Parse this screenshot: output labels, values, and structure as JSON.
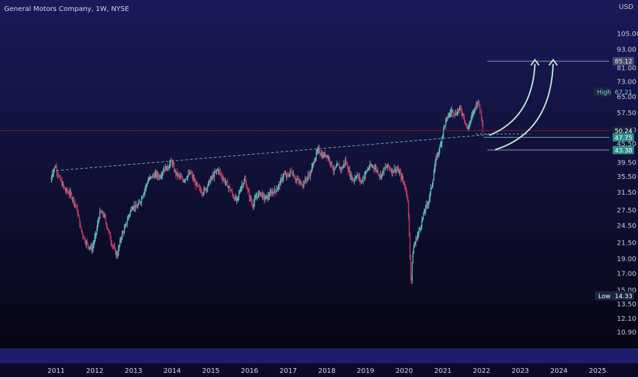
{
  "header": {
    "title": "General Motors Company, 1W, NYSE",
    "currency": "USD"
  },
  "colors": {
    "bg_top": "#1a1a5a",
    "bg_bottom": "#05050f",
    "up": "#5fb8b8",
    "down": "#c23a5e",
    "current_line": "#8b1a1a",
    "trend_line": "#6fb3b3",
    "arrow": "#bfe8d6",
    "badge_teal": "#2f8f8a",
    "badge_dark": "#1b2740",
    "target_badge": "#4a4a66"
  },
  "chart_data": {
    "type": "candlestick",
    "title": "General Motors Company, 1W, NYSE",
    "scale": "log",
    "ylim": [
      9.8,
      122
    ],
    "y_ticks": [
      "105.00",
      "93.00",
      "81.00",
      "73.00",
      "65.00",
      "57.50",
      "50.50",
      "45.50",
      "39.50",
      "35.50",
      "31.50",
      "27.50",
      "24.50",
      "21.50",
      "19.00",
      "17.00",
      "15.00",
      "13.50",
      "12.10",
      "10.90"
    ],
    "x_ticks": [
      "2011",
      "2012",
      "2013",
      "2014",
      "2015",
      "2016",
      "2017",
      "2018",
      "2019",
      "2020",
      "2021",
      "2022",
      "2023",
      "2024",
      "2025"
    ],
    "xlim": [
      2010.5,
      2026.0
    ],
    "series_points": [
      [
        2010.88,
        34.0
      ],
      [
        2010.92,
        36.5
      ],
      [
        2011.0,
        38.5
      ],
      [
        2011.1,
        35.0
      ],
      [
        2011.25,
        32.0
      ],
      [
        2011.4,
        31.0
      ],
      [
        2011.55,
        28.0
      ],
      [
        2011.65,
        24.0
      ],
      [
        2011.75,
        22.0
      ],
      [
        2011.85,
        21.0
      ],
      [
        2011.95,
        20.5
      ],
      [
        2012.05,
        23.0
      ],
      [
        2012.15,
        27.0
      ],
      [
        2012.25,
        26.5
      ],
      [
        2012.35,
        24.0
      ],
      [
        2012.45,
        21.5
      ],
      [
        2012.55,
        20.0
      ],
      [
        2012.6,
        19.5
      ],
      [
        2012.7,
        22.5
      ],
      [
        2012.8,
        24.0
      ],
      [
        2012.9,
        26.5
      ],
      [
        2013.0,
        28.5
      ],
      [
        2013.1,
        28.0
      ],
      [
        2013.2,
        29.5
      ],
      [
        2013.3,
        32.0
      ],
      [
        2013.4,
        34.5
      ],
      [
        2013.5,
        35.5
      ],
      [
        2013.6,
        36.0
      ],
      [
        2013.7,
        35.5
      ],
      [
        2013.8,
        37.5
      ],
      [
        2013.9,
        38.0
      ],
      [
        2014.0,
        40.0
      ],
      [
        2014.1,
        36.5
      ],
      [
        2014.2,
        35.5
      ],
      [
        2014.3,
        34.5
      ],
      [
        2014.4,
        35.5
      ],
      [
        2014.5,
        36.5
      ],
      [
        2014.6,
        34.0
      ],
      [
        2014.7,
        32.5
      ],
      [
        2014.8,
        31.5
      ],
      [
        2014.9,
        32.5
      ],
      [
        2015.0,
        34.5
      ],
      [
        2015.1,
        36.0
      ],
      [
        2015.2,
        37.5
      ],
      [
        2015.3,
        35.5
      ],
      [
        2015.4,
        34.0
      ],
      [
        2015.5,
        32.5
      ],
      [
        2015.6,
        30.5
      ],
      [
        2015.7,
        29.5
      ],
      [
        2015.8,
        33.0
      ],
      [
        2015.9,
        34.5
      ],
      [
        2016.0,
        31.0
      ],
      [
        2016.1,
        28.5
      ],
      [
        2016.2,
        30.5
      ],
      [
        2016.3,
        31.5
      ],
      [
        2016.4,
        30.0
      ],
      [
        2016.5,
        30.5
      ],
      [
        2016.6,
        31.5
      ],
      [
        2016.7,
        32.0
      ],
      [
        2016.8,
        33.5
      ],
      [
        2016.9,
        36.0
      ],
      [
        2017.0,
        35.5
      ],
      [
        2017.1,
        37.0
      ],
      [
        2017.2,
        35.0
      ],
      [
        2017.3,
        34.0
      ],
      [
        2017.4,
        33.5
      ],
      [
        2017.5,
        35.0
      ],
      [
        2017.6,
        36.5
      ],
      [
        2017.7,
        40.5
      ],
      [
        2017.8,
        43.5
      ],
      [
        2017.9,
        41.5
      ],
      [
        2018.0,
        42.0
      ],
      [
        2018.1,
        40.0
      ],
      [
        2018.2,
        37.0
      ],
      [
        2018.3,
        38.5
      ],
      [
        2018.4,
        37.5
      ],
      [
        2018.5,
        40.0
      ],
      [
        2018.6,
        36.5
      ],
      [
        2018.7,
        34.5
      ],
      [
        2018.8,
        36.0
      ],
      [
        2018.9,
        34.0
      ],
      [
        2019.0,
        36.0
      ],
      [
        2019.1,
        38.0
      ],
      [
        2019.2,
        38.5
      ],
      [
        2019.3,
        37.5
      ],
      [
        2019.4,
        35.5
      ],
      [
        2019.5,
        37.5
      ],
      [
        2019.6,
        38.5
      ],
      [
        2019.7,
        37.0
      ],
      [
        2019.8,
        37.5
      ],
      [
        2019.9,
        36.5
      ],
      [
        2020.0,
        34.0
      ],
      [
        2020.1,
        31.0
      ],
      [
        2020.18,
        17.5
      ],
      [
        2020.2,
        15.5
      ],
      [
        2020.25,
        20.5
      ],
      [
        2020.35,
        22.5
      ],
      [
        2020.45,
        24.5
      ],
      [
        2020.55,
        27.5
      ],
      [
        2020.65,
        29.5
      ],
      [
        2020.75,
        34.0
      ],
      [
        2020.85,
        41.0
      ],
      [
        2020.95,
        44.5
      ],
      [
        2021.05,
        52.0
      ],
      [
        2021.15,
        56.0
      ],
      [
        2021.25,
        58.5
      ],
      [
        2021.35,
        57.0
      ],
      [
        2021.45,
        59.5
      ],
      [
        2021.55,
        56.5
      ],
      [
        2021.65,
        50.5
      ],
      [
        2021.75,
        55.0
      ],
      [
        2021.85,
        60.0
      ],
      [
        2021.92,
        63.0
      ],
      [
        2022.0,
        58.0
      ],
      [
        2022.05,
        52.0
      ]
    ],
    "trend_line": {
      "from": [
        2010.88,
        37.0
      ],
      "to": [
        2022.2,
        48.8
      ],
      "style": "dashed"
    },
    "current_price_line": 50.24,
    "support_line": 47.75,
    "target_line": {
      "value": 85.12,
      "from_x": 2022.15
    },
    "stop_line": {
      "value": 43.38,
      "from_x": 2022.15
    },
    "projection_arrows": [
      {
        "from": [
          2022.2,
          48.5
        ],
        "to": [
          2023.38,
          86.0
        ]
      },
      {
        "from": [
          2022.35,
          43.5
        ],
        "to": [
          2023.85,
          86.0
        ]
      }
    ],
    "price_labels": {
      "target": "85.12",
      "high_label": "High",
      "high": "67.21",
      "current": "50.24",
      "support": "47.75",
      "stop": "43.38",
      "low_label": "Low",
      "low": "14.33"
    },
    "high_value": 67.21,
    "low_value": 14.33
  }
}
